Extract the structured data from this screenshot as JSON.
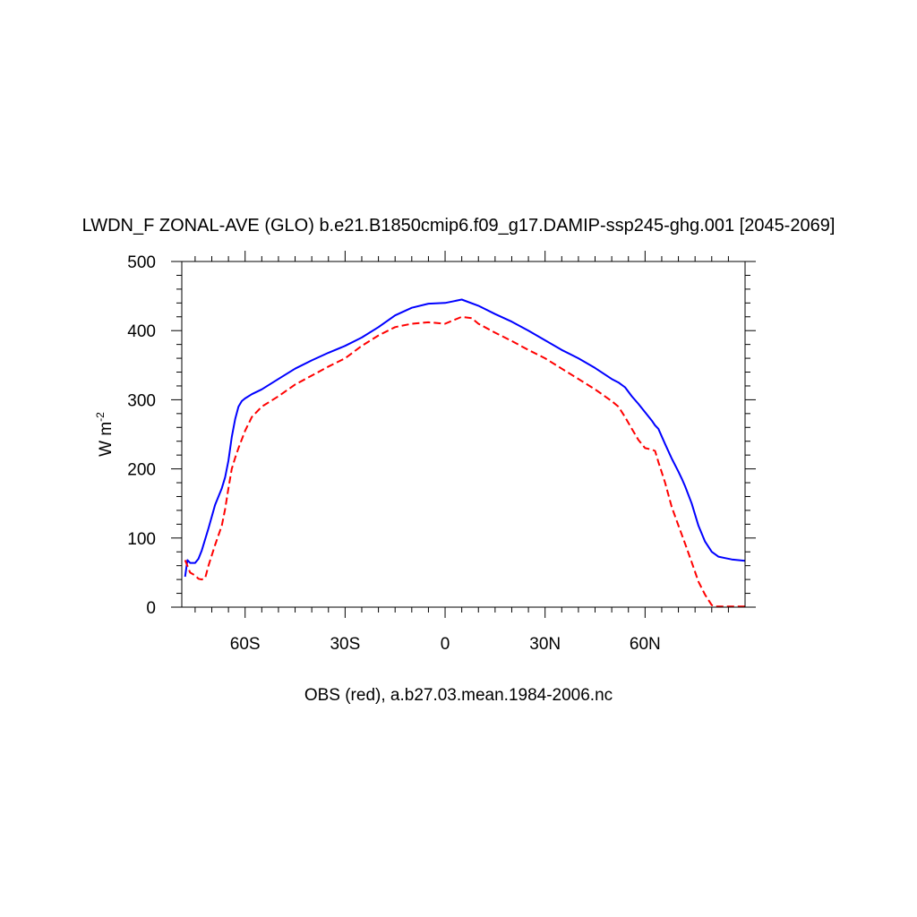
{
  "chart_data": {
    "type": "line",
    "title": "LWDN_F ZONAL-AVE (GLO) b.e21.B1850cmip6.f09_g17.DAMIP-ssp245-ghg.001 [2045-2069]",
    "ylabel": "W m",
    "ylabel_superscript": "-2",
    "xlabel": "",
    "footer": "OBS (red), a.b27.03.mean.1984-2006.nc",
    "xlim": [
      -79,
      90
    ],
    "ylim": [
      0,
      500
    ],
    "x_tick_values": [
      -60,
      -30,
      0,
      30,
      60
    ],
    "x_tick_labels": [
      "60S",
      "30S",
      "0",
      "30N",
      "60N"
    ],
    "y_tick_values": [
      0,
      100,
      200,
      300,
      400,
      500
    ],
    "y_tick_labels": [
      "0",
      "100",
      "200",
      "300",
      "400",
      "500"
    ],
    "grid": false,
    "series": [
      {
        "color": "#0000ff",
        "dash": "solid",
        "x": [
          -78,
          -77.3,
          -76.5,
          -75,
          -74,
          -73,
          -71,
          -69,
          -67,
          -66,
          -65,
          -64,
          -63,
          -62,
          -61,
          -60,
          -58,
          -55,
          -50,
          -45,
          -40,
          -35,
          -30,
          -25,
          -20,
          -15,
          -10,
          -5,
          0,
          2,
          5,
          10,
          15,
          20,
          25,
          30,
          35,
          40,
          45,
          50,
          52,
          54,
          56,
          58,
          60,
          62,
          63,
          64,
          66,
          68,
          70,
          71,
          72,
          74,
          76,
          78,
          80,
          82,
          84,
          86,
          90
        ],
        "y": [
          44,
          68,
          64,
          64,
          70,
          82,
          114,
          148,
          172,
          188,
          212,
          246,
          272,
          290,
          298,
          302,
          308,
          315,
          330,
          345,
          357,
          368,
          378,
          390,
          405,
          422,
          433,
          439,
          440,
          442,
          445,
          436,
          424,
          413,
          400,
          386,
          372,
          360,
          346,
          330,
          325,
          318,
          305,
          294,
          282,
          270,
          263,
          258,
          236,
          215,
          196,
          186,
          175,
          150,
          118,
          95,
          80,
          73,
          71,
          69,
          67
        ]
      },
      {
        "color": "#ff0000",
        "dash": "dashed",
        "x": [
          -78,
          -77.5,
          -76.5,
          -75,
          -74,
          -73,
          -72,
          -71,
          -69,
          -67,
          -66,
          -65,
          -64,
          -63,
          -62,
          -60,
          -58,
          -55,
          -50,
          -45,
          -40,
          -35,
          -30,
          -25,
          -20,
          -15,
          -10,
          -5,
          0,
          2,
          5,
          8,
          10,
          15,
          20,
          25,
          30,
          35,
          40,
          45,
          50,
          52,
          54,
          56,
          58,
          60,
          62,
          63,
          64,
          66,
          68,
          70,
          72,
          74,
          76,
          78,
          80,
          81,
          82,
          84,
          86,
          90
        ],
        "y": [
          68,
          62,
          50,
          46,
          41,
          40,
          42,
          60,
          90,
          118,
          142,
          172,
          200,
          216,
          230,
          255,
          275,
          290,
          305,
          322,
          335,
          348,
          360,
          378,
          393,
          405,
          410,
          412,
          410,
          414,
          420,
          418,
          410,
          397,
          385,
          372,
          360,
          345,
          330,
          315,
          298,
          290,
          275,
          258,
          242,
          230,
          228,
          226,
          210,
          180,
          145,
          118,
          92,
          65,
          37,
          18,
          3,
          1,
          1,
          1,
          1,
          1
        ]
      }
    ]
  }
}
